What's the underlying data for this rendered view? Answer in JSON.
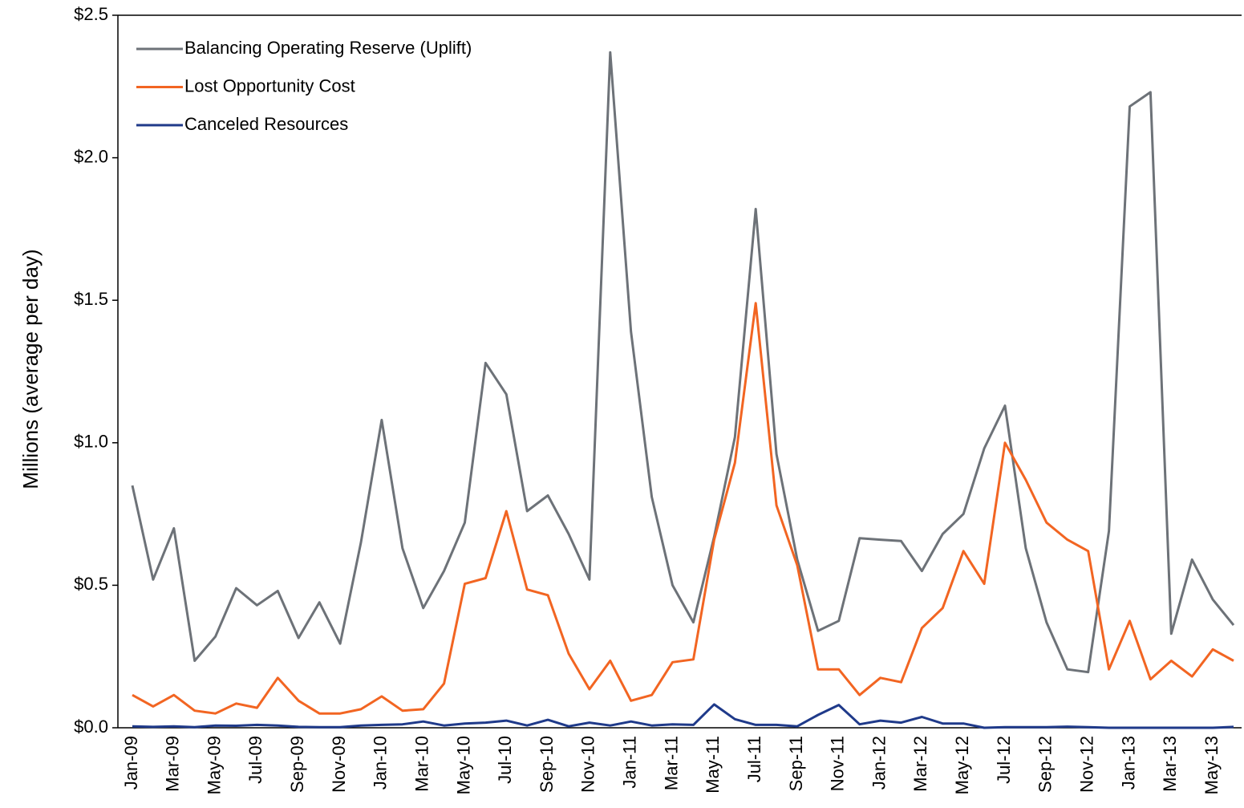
{
  "chart_data": {
    "type": "line",
    "y_axis_label": "Millions (average per day)",
    "categories": [
      "Jan-09",
      null,
      "Mar-09",
      null,
      "May-09",
      null,
      "Jul-09",
      null,
      "Sep-09",
      null,
      "Nov-09",
      null,
      "Jan-10",
      null,
      "Mar-10",
      null,
      "May-10",
      null,
      "Jul-10",
      null,
      "Sep-10",
      null,
      "Nov-10",
      null,
      "Jan-11",
      null,
      "Mar-11",
      null,
      "May-11",
      null,
      "Jul-11",
      null,
      "Sep-11",
      null,
      "Nov-11",
      null,
      "Jan-12",
      null,
      "Mar-12",
      null,
      "May-12",
      null,
      "Jul-12",
      null,
      "Sep-12",
      null,
      "Nov-12",
      null,
      "Jan-13",
      null,
      "Mar-13",
      null,
      "May-13",
      null
    ],
    "series": [
      {
        "name": "Balancing Operating Reserve (Uplift)",
        "color": "#6d7278",
        "values": [
          0.85,
          0.52,
          0.7,
          0.235,
          0.32,
          0.49,
          0.43,
          0.48,
          0.315,
          0.44,
          0.295,
          0.65,
          1.08,
          0.63,
          0.42,
          0.55,
          0.72,
          1.28,
          1.17,
          0.76,
          0.815,
          0.68,
          0.52,
          2.37,
          1.39,
          0.81,
          0.5,
          0.37,
          0.67,
          1.02,
          1.82,
          0.96,
          0.59,
          0.34,
          0.375,
          0.665,
          0.66,
          0.655,
          0.55,
          0.68,
          0.75,
          0.98,
          1.13,
          0.63,
          0.37,
          0.205,
          0.195,
          0.69,
          2.18,
          2.23,
          0.33,
          0.59,
          0.45,
          0.36
        ]
      },
      {
        "name": "Lost Opportunity Cost",
        "color": "#f26522",
        "values": [
          0.115,
          0.075,
          0.115,
          0.06,
          0.05,
          0.085,
          0.07,
          0.175,
          0.095,
          0.05,
          0.05,
          0.065,
          0.11,
          0.06,
          0.065,
          0.155,
          0.505,
          0.525,
          0.76,
          0.485,
          0.465,
          0.26,
          0.135,
          0.235,
          0.095,
          0.115,
          0.23,
          0.24,
          0.66,
          0.93,
          1.49,
          0.78,
          0.57,
          0.205,
          0.205,
          0.115,
          0.175,
          0.16,
          0.35,
          0.42,
          0.62,
          0.505,
          1.0,
          0.87,
          0.72,
          0.66,
          0.62,
          0.205,
          0.375,
          0.17,
          0.235,
          0.18,
          0.275,
          0.235
        ]
      },
      {
        "name": "Canceled Resources",
        "color": "#1f3a8a",
        "values": [
          0.005,
          0.003,
          0.005,
          0.002,
          0.008,
          0.007,
          0.01,
          0.008,
          0.003,
          0.002,
          0.002,
          0.008,
          0.01,
          0.012,
          0.022,
          0.008,
          0.015,
          0.018,
          0.025,
          0.008,
          0.028,
          0.005,
          0.018,
          0.008,
          0.022,
          0.008,
          0.012,
          0.01,
          0.082,
          0.03,
          0.01,
          0.01,
          0.005,
          0.045,
          0.08,
          0.012,
          0.025,
          0.018,
          0.038,
          0.015,
          0.015,
          0.0,
          0.002,
          0.002,
          0.002,
          0.004,
          0.002,
          0.0,
          0.0,
          0.0,
          0.0,
          0.0,
          0.0,
          0.003
        ]
      }
    ],
    "ylim": [
      0,
      2.5
    ],
    "yticks": [
      {
        "value": 0,
        "label": "$0.0"
      },
      {
        "value": 0.5,
        "label": "$0.5"
      },
      {
        "value": 1,
        "label": "$1.0"
      },
      {
        "value": 1.5,
        "label": "$1.5"
      },
      {
        "value": 2,
        "label": "$2.0"
      },
      {
        "value": 2.5,
        "label": "$2.5"
      }
    ],
    "legend": "upper-left",
    "grid": false
  }
}
